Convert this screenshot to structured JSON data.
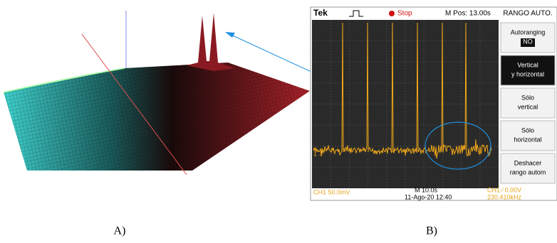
{
  "panels": [
    {
      "label": "A)"
    },
    {
      "label": "B)",
      "scope": {
        "brand": "Tek",
        "state": "Stop",
        "position": "M Pos: 13.00s",
        "menu_title": "RANGO AUTO.",
        "menu": [
          [
            "Autoranging",
            "NO"
          ],
          [
            "Vertical",
            "y horizontal"
          ],
          [
            "Sólo",
            "vertical"
          ],
          [
            "Sólo",
            "horizontal"
          ],
          [
            "Deshacer",
            "rango autom"
          ]
        ],
        "channel_marker": "1→",
        "channel_scale": "CH1  50.0mV",
        "timebase": "M 10.0s",
        "date": "11-Ago-20 12:40",
        "trigger": "CH1 ∕ 0.00V",
        "frequency": "230.410kHz"
      }
    }
  ]
}
